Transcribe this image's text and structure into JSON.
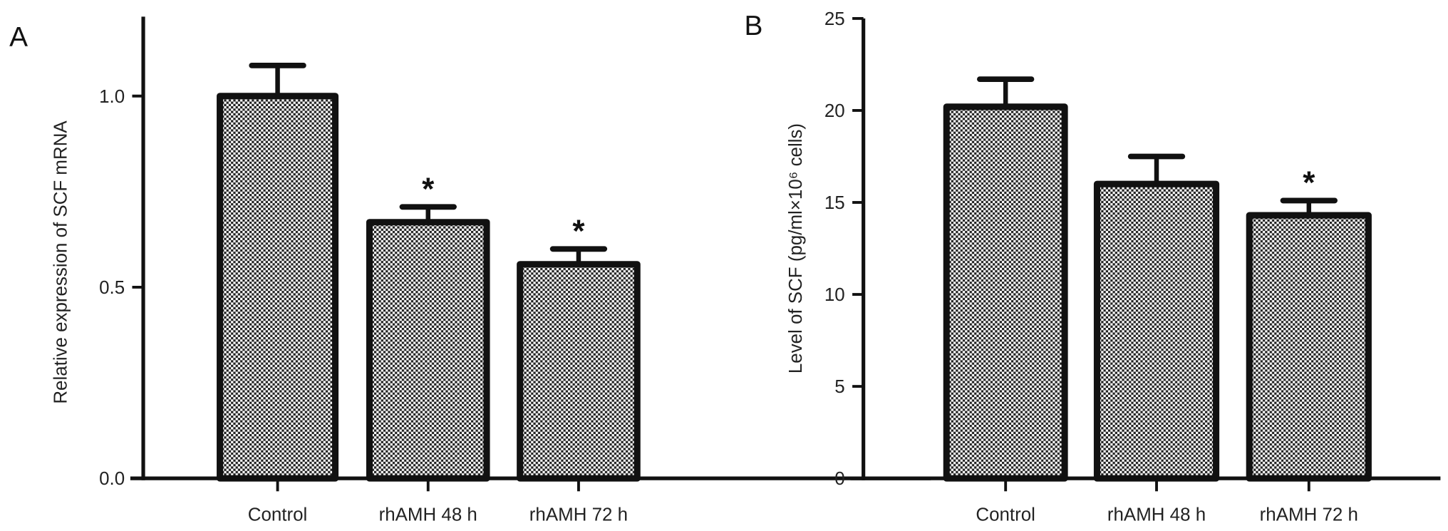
{
  "chart_data": [
    {
      "type": "bar",
      "panel_label": "A",
      "categories": [
        "Control",
        "rhAMH 48 h",
        "rhAMH 72 h"
      ],
      "values": [
        1.0,
        0.67,
        0.56
      ],
      "error_upper": [
        1.08,
        0.71,
        0.6
      ],
      "annotations": [
        "",
        "*",
        "*"
      ],
      "xlabel": "",
      "ylabel": "Relative expression of SCF mRNA",
      "ylim": [
        0,
        1.2
      ],
      "yticks": [
        0.0,
        0.5,
        1.0
      ],
      "ytick_labels": [
        "0.0",
        "0.5",
        "1.0"
      ],
      "grid": false,
      "bar_fill": "checkered black/white pattern",
      "bar_edge_color": "#111111"
    },
    {
      "type": "bar",
      "panel_label": "B",
      "categories": [
        "Control",
        "rhAMH 48 h",
        "rhAMH 72 h"
      ],
      "values": [
        20.2,
        16.0,
        14.3
      ],
      "error_upper": [
        21.7,
        17.5,
        15.1
      ],
      "annotations": [
        "",
        "",
        "*"
      ],
      "xlabel": "",
      "ylabel": "Level of SCF (pg/ml×10⁶ cells)",
      "ylim": [
        0,
        25
      ],
      "yticks": [
        0,
        5,
        10,
        15,
        20,
        25
      ],
      "ytick_labels": [
        "0",
        "5",
        "10",
        "15",
        "20",
        "25"
      ],
      "grid": false,
      "bar_fill": "checkered black/white pattern",
      "bar_edge_color": "#111111"
    }
  ]
}
